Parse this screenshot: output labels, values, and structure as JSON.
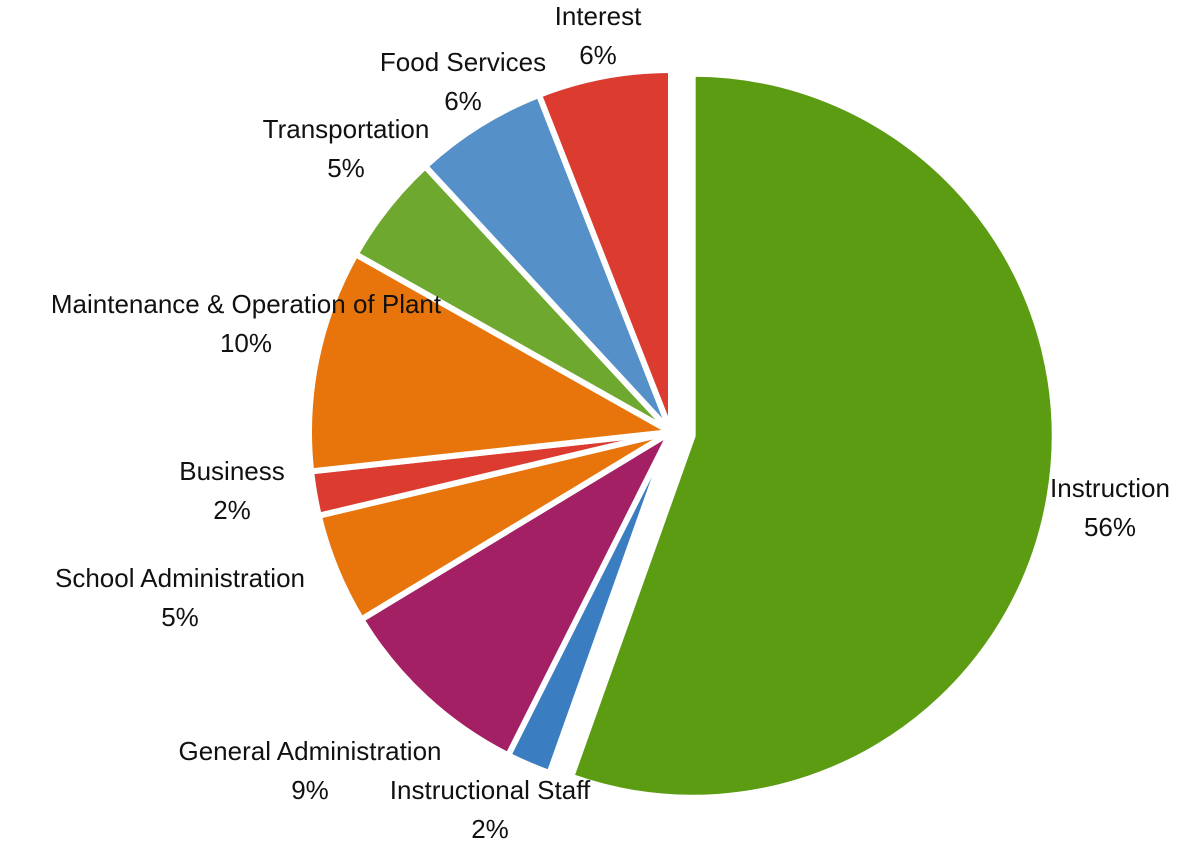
{
  "chart_data": {
    "type": "pie",
    "title": "",
    "slices": [
      {
        "label": "Instruction",
        "value": 56,
        "value_label": "56%",
        "color": "#5b9c12"
      },
      {
        "label": "Instructional Staff",
        "value": 2,
        "value_label": "2%",
        "color": "#3a7ec1"
      },
      {
        "label": "General Administration",
        "value": 9,
        "value_label": "9%",
        "color": "#a32064"
      },
      {
        "label": "School Administration",
        "value": 5,
        "value_label": "5%",
        "color": "#e8750b"
      },
      {
        "label": "Business",
        "value": 2,
        "value_label": "2%",
        "color": "#dc3b30"
      },
      {
        "label": "Maintenance & Operation of Plant",
        "value": 10,
        "value_label": "10%",
        "color": "#e8750b"
      },
      {
        "label": "Transportation",
        "value": 5,
        "value_label": "5%",
        "color": "#6ea82f"
      },
      {
        "label": "Food Services",
        "value": 6,
        "value_label": "6%",
        "color": "#5590c9"
      },
      {
        "label": "Interest",
        "value": 6,
        "value_label": "6%",
        "color": "#dc3b30"
      }
    ],
    "exploded_slice": "Instruction",
    "legend": "none"
  }
}
